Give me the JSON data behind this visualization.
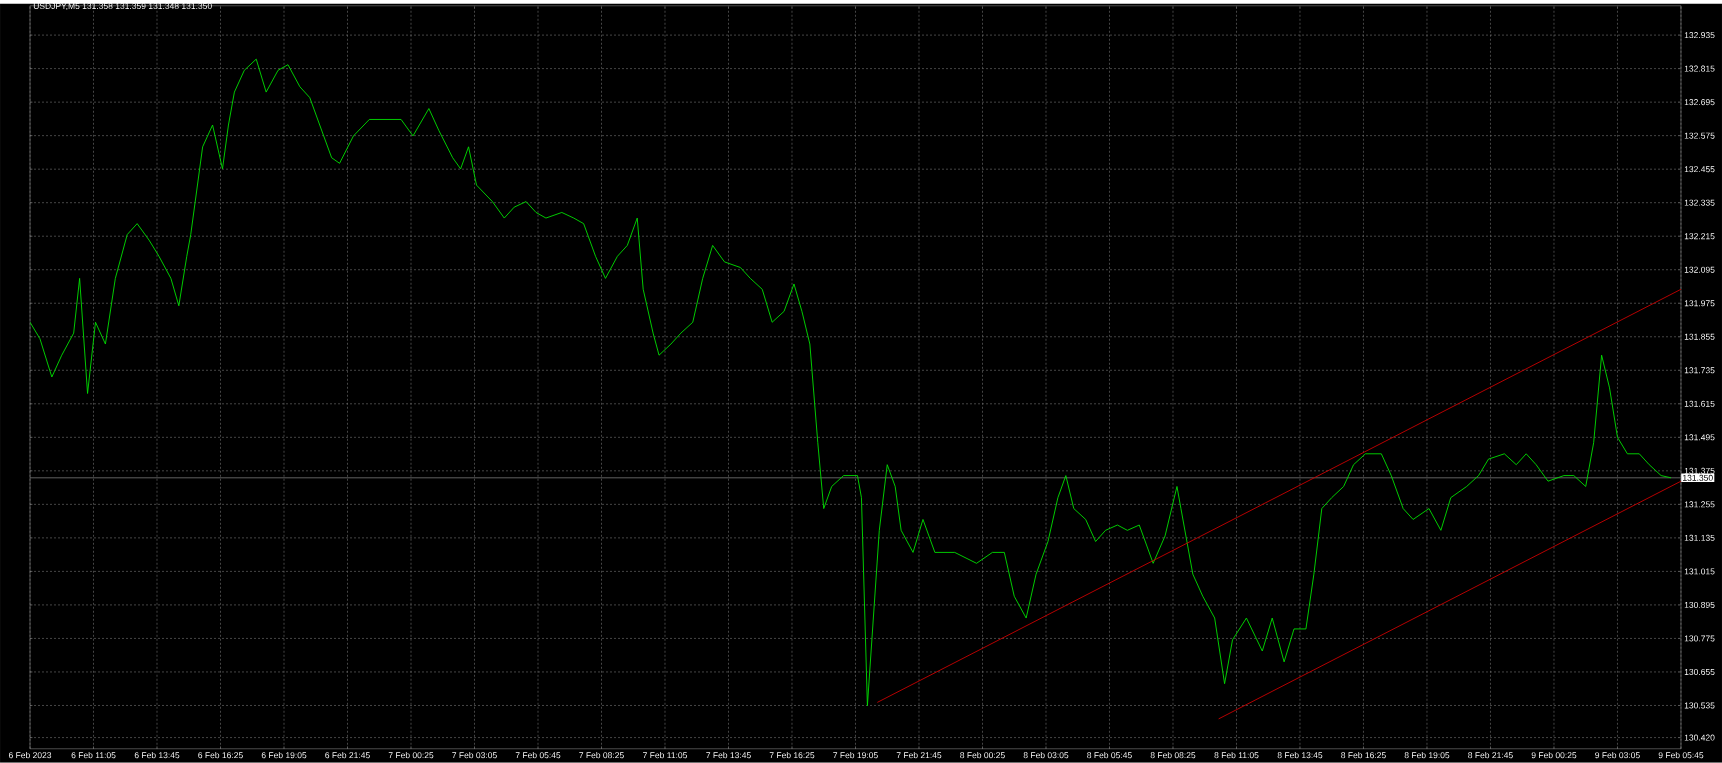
{
  "chart_data": {
    "type": "line",
    "title": "USDJPY,M5 131.358 131.359 131.348 131.350",
    "x": [
      "2023-02-06T08:25",
      "2023-02-06T08:50",
      "2023-02-06T09:20",
      "2023-02-06T09:45",
      "2023-02-06T10:15",
      "2023-02-06T10:30",
      "2023-02-06T10:50",
      "2023-02-06T11:10",
      "2023-02-06T11:35",
      "2023-02-06T12:00",
      "2023-02-06T12:30",
      "2023-02-06T12:55",
      "2023-02-06T13:25",
      "2023-02-06T13:50",
      "2023-02-06T14:20",
      "2023-02-06T14:40",
      "2023-02-06T15:00",
      "2023-02-06T15:10",
      "2023-02-06T15:25",
      "2023-02-06T15:40",
      "2023-02-06T16:05",
      "2023-02-06T16:30",
      "2023-02-06T16:45",
      "2023-02-06T17:00",
      "2023-02-06T17:25",
      "2023-02-06T17:55",
      "2023-02-06T18:20",
      "2023-02-06T18:50",
      "2023-02-06T19:15",
      "2023-02-06T19:45",
      "2023-02-06T20:10",
      "2023-02-06T20:35",
      "2023-02-06T21:05",
      "2023-02-06T21:25",
      "2023-02-06T22:00",
      "2023-02-06T22:40",
      "2023-02-06T23:20",
      "2023-02-07T00:00",
      "2023-02-07T00:30",
      "2023-02-07T01:10",
      "2023-02-07T01:35",
      "2023-02-07T02:10",
      "2023-02-07T02:30",
      "2023-02-07T02:50",
      "2023-02-07T03:10",
      "2023-02-07T03:50",
      "2023-02-07T04:20",
      "2023-02-07T04:45",
      "2023-02-07T05:15",
      "2023-02-07T05:40",
      "2023-02-07T06:05",
      "2023-02-07T06:45",
      "2023-02-07T07:15",
      "2023-02-07T07:40",
      "2023-02-07T08:10",
      "2023-02-07T08:35",
      "2023-02-07T09:05",
      "2023-02-07T09:30",
      "2023-02-07T09:55",
      "2023-02-07T10:10",
      "2023-02-07T10:35",
      "2023-02-07T10:50",
      "2023-02-07T11:20",
      "2023-02-07T11:45",
      "2023-02-07T12:15",
      "2023-02-07T12:40",
      "2023-02-07T13:05",
      "2023-02-07T13:35",
      "2023-02-07T14:15",
      "2023-02-07T14:40",
      "2023-02-07T15:10",
      "2023-02-07T15:35",
      "2023-02-07T16:05",
      "2023-02-07T16:30",
      "2023-02-07T16:50",
      "2023-02-07T17:10",
      "2023-02-07T17:30",
      "2023-02-07T17:45",
      "2023-02-07T18:05",
      "2023-02-07T18:35",
      "2023-02-07T19:10",
      "2023-02-07T19:20",
      "2023-02-07T19:35",
      "2023-02-07T19:50",
      "2023-02-07T20:05",
      "2023-02-07T20:25",
      "2023-02-07T20:45",
      "2023-02-07T21:00",
      "2023-02-07T21:30",
      "2023-02-07T21:55",
      "2023-02-07T22:25",
      "2023-02-07T23:15",
      "2023-02-08T00:10",
      "2023-02-08T00:50",
      "2023-02-08T01:20",
      "2023-02-08T01:45",
      "2023-02-08T02:15",
      "2023-02-08T02:40",
      "2023-02-08T03:10",
      "2023-02-08T03:35",
      "2023-02-08T03:55",
      "2023-02-08T04:15",
      "2023-02-08T04:45",
      "2023-02-08T05:10",
      "2023-02-08T05:35",
      "2023-02-08T06:05",
      "2023-02-08T06:30",
      "2023-02-08T07:00",
      "2023-02-08T07:35",
      "2023-02-08T08:05",
      "2023-02-08T08:35",
      "2023-02-08T08:45",
      "2023-02-08T09:15",
      "2023-02-08T09:40",
      "2023-02-08T10:10",
      "2023-02-08T10:35",
      "2023-02-08T10:55",
      "2023-02-08T11:30",
      "2023-02-08T12:10",
      "2023-02-08T12:35",
      "2023-02-08T13:05",
      "2023-02-08T13:30",
      "2023-02-08T14:00",
      "2023-02-08T14:20",
      "2023-02-08T14:40",
      "2023-02-08T15:05",
      "2023-02-08T15:35",
      "2023-02-08T16:00",
      "2023-02-08T16:30",
      "2023-02-08T17:10",
      "2023-02-08T17:35",
      "2023-02-08T18:05",
      "2023-02-08T18:30",
      "2023-02-08T19:10",
      "2023-02-08T19:40",
      "2023-02-08T20:05",
      "2023-02-08T20:45",
      "2023-02-08T21:15",
      "2023-02-08T21:40",
      "2023-02-08T22:20",
      "2023-02-08T22:50",
      "2023-02-08T23:15",
      "2023-02-08T23:40",
      "2023-02-09T00:10",
      "2023-02-09T00:50",
      "2023-02-09T01:15",
      "2023-02-09T01:45",
      "2023-02-09T02:05",
      "2023-02-09T02:25",
      "2023-02-09T02:45",
      "2023-02-09T03:05",
      "2023-02-09T03:30",
      "2023-02-09T04:00",
      "2023-02-09T04:25",
      "2023-02-09T04:55",
      "2023-02-09T05:20"
    ],
    "series": [
      {
        "color": "#00e000",
        "values": [
          131.907,
          131.848,
          131.711,
          131.789,
          131.868,
          132.064,
          131.652,
          131.907,
          131.829,
          132.064,
          132.221,
          132.26,
          132.201,
          132.143,
          132.064,
          131.966,
          132.143,
          132.221,
          132.378,
          132.535,
          132.613,
          132.456,
          132.613,
          132.731,
          132.809,
          132.849,
          132.731,
          132.809,
          132.829,
          132.75,
          132.711,
          132.613,
          132.496,
          132.476,
          132.574,
          132.633,
          132.633,
          132.633,
          132.574,
          132.672,
          132.594,
          132.496,
          132.456,
          132.535,
          132.398,
          132.339,
          132.28,
          132.319,
          132.339,
          132.3,
          132.28,
          132.3,
          132.28,
          132.26,
          132.143,
          132.064,
          132.143,
          132.182,
          132.28,
          132.025,
          131.868,
          131.789,
          131.829,
          131.868,
          131.907,
          132.064,
          132.182,
          132.123,
          132.103,
          132.064,
          132.025,
          131.907,
          131.946,
          132.044,
          131.946,
          131.829,
          131.476,
          131.24,
          131.319,
          131.358,
          131.358,
          131.279,
          130.534,
          130.848,
          131.162,
          131.397,
          131.319,
          131.162,
          131.083,
          131.201,
          131.083,
          131.083,
          131.044,
          131.083,
          131.083,
          130.926,
          130.848,
          131.005,
          131.122,
          131.279,
          131.358,
          131.24,
          131.201,
          131.122,
          131.162,
          131.181,
          131.162,
          131.181,
          131.044,
          131.142,
          131.319,
          131.24,
          131.005,
          130.926,
          130.848,
          130.613,
          130.77,
          130.848,
          130.73,
          130.848,
          130.691,
          130.809,
          130.809,
          131.005,
          131.24,
          131.279,
          131.319,
          131.397,
          131.436,
          131.436,
          131.358,
          131.24,
          131.201,
          131.24,
          131.162,
          131.279,
          131.319,
          131.358,
          131.417,
          131.436,
          131.397,
          131.436,
          131.397,
          131.338,
          131.358,
          131.358,
          131.319,
          131.476,
          131.789,
          131.672,
          131.495,
          131.436,
          131.436,
          131.397,
          131.358,
          131.35
        ]
      },
      {
        "color": "#c80000",
        "x": [
          "2023-02-07T20:00",
          "2023-02-09T05:45"
        ],
        "values": [
          130.546,
          132.025
        ]
      },
      {
        "color": "#c80000",
        "x": [
          "2023-02-08T10:20",
          "2023-02-09T05:45"
        ],
        "values": [
          130.487,
          131.338
        ]
      }
    ],
    "xlim": [
      "2023-02-06T08:25",
      "2023-02-09T05:45"
    ],
    "xticks": [
      {
        "value": "2023-02-06T08:25",
        "label": "6 Feb 2023"
      },
      {
        "value": "2023-02-06T11:05",
        "label": "6 Feb 11:05"
      },
      {
        "value": "2023-02-06T13:45",
        "label": "6 Feb 13:45"
      },
      {
        "value": "2023-02-06T16:25",
        "label": "6 Feb 16:25"
      },
      {
        "value": "2023-02-06T19:05",
        "label": "6 Feb 19:05"
      },
      {
        "value": "2023-02-06T21:45",
        "label": "6 Feb 21:45"
      },
      {
        "value": "2023-02-07T00:25",
        "label": "7 Feb 00:25"
      },
      {
        "value": "2023-02-07T03:05",
        "label": "7 Feb 03:05"
      },
      {
        "value": "2023-02-07T05:45",
        "label": "7 Feb 05:45"
      },
      {
        "value": "2023-02-07T08:25",
        "label": "7 Feb 08:25"
      },
      {
        "value": "2023-02-07T11:05",
        "label": "7 Feb 11:05"
      },
      {
        "value": "2023-02-07T13:45",
        "label": "7 Feb 13:45"
      },
      {
        "value": "2023-02-07T16:25",
        "label": "7 Feb 16:25"
      },
      {
        "value": "2023-02-07T19:05",
        "label": "7 Feb 19:05"
      },
      {
        "value": "2023-02-07T21:45",
        "label": "7 Feb 21:45"
      },
      {
        "value": "2023-02-08T00:25",
        "label": "8 Feb 00:25"
      },
      {
        "value": "2023-02-08T03:05",
        "label": "8 Feb 03:05"
      },
      {
        "value": "2023-02-08T05:45",
        "label": "8 Feb 05:45"
      },
      {
        "value": "2023-02-08T08:25",
        "label": "8 Feb 08:25"
      },
      {
        "value": "2023-02-08T11:05",
        "label": "8 Feb 11:05"
      },
      {
        "value": "2023-02-08T13:45",
        "label": "8 Feb 13:45"
      },
      {
        "value": "2023-02-08T16:25",
        "label": "8 Feb 16:25"
      },
      {
        "value": "2023-02-08T19:05",
        "label": "8 Feb 19:05"
      },
      {
        "value": "2023-02-08T21:45",
        "label": "8 Feb 21:45"
      },
      {
        "value": "2023-02-09T00:25",
        "label": "9 Feb 00:25"
      },
      {
        "value": "2023-02-09T03:05",
        "label": "9 Feb 03:05"
      },
      {
        "value": "2023-02-09T05:45",
        "label": "9 Feb 05:45"
      }
    ],
    "ylim": [
      130.38,
      133.04
    ],
    "yticks": [
      {
        "value": 130.42,
        "label": "130.420"
      },
      130.535,
      130.655,
      130.775,
      130.895,
      131.015,
      131.135,
      131.255,
      131.375,
      131.495,
      131.615,
      131.735,
      131.855,
      131.975,
      132.095,
      132.215,
      132.335,
      132.455,
      132.575,
      132.695,
      132.815,
      132.935
    ],
    "ref_lines": [
      {
        "axis": "y",
        "value": 131.35,
        "label": "131.350",
        "color": "#8a8a8a"
      }
    ],
    "grid": true,
    "marker": "none",
    "line_style": "solid"
  }
}
